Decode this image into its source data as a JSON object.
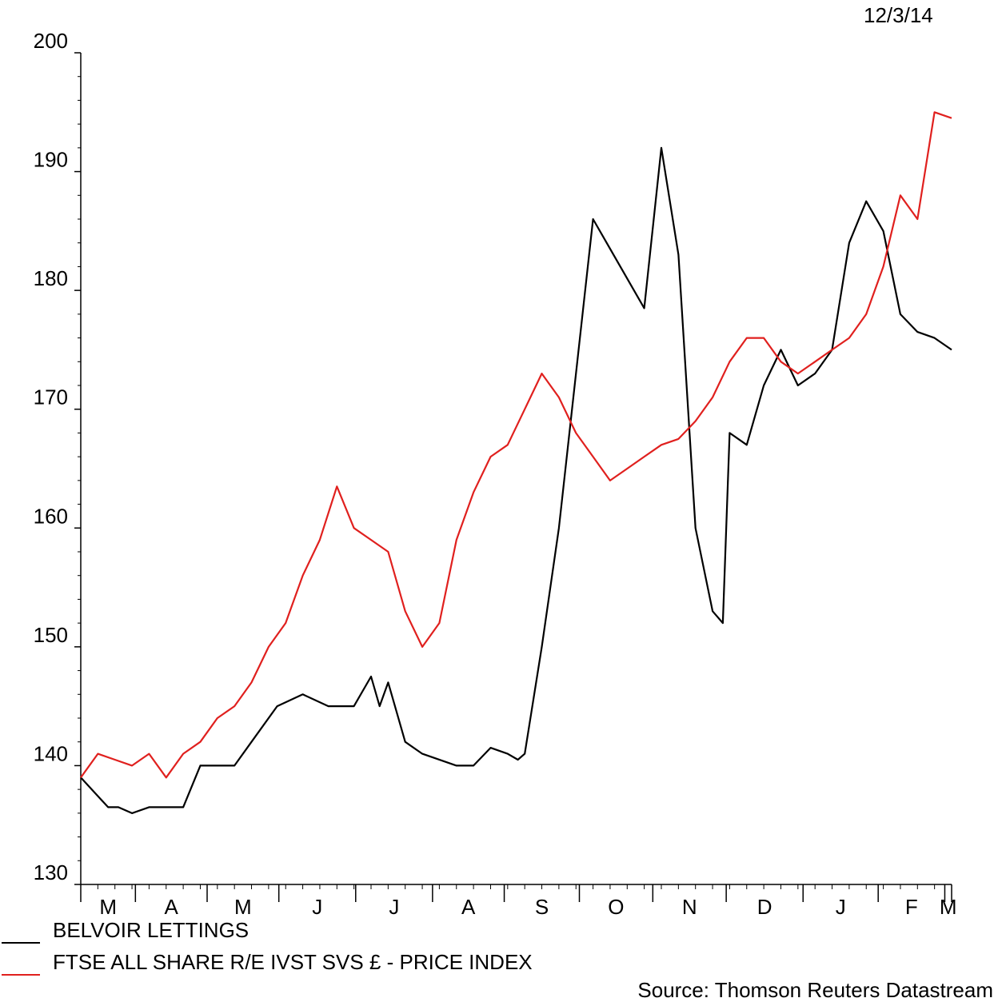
{
  "date_label": "12/3/14",
  "source_label": "Source: Thomson Reuters Datastream",
  "chart_data": {
    "type": "line",
    "title": "",
    "xlabel": "",
    "ylabel": "",
    "ylim": [
      130,
      200
    ],
    "yticks": [
      130,
      140,
      150,
      160,
      170,
      180,
      190,
      200
    ],
    "x_tick_labels": [
      "M",
      "A",
      "M",
      "J",
      "J",
      "A",
      "S",
      "O",
      "N",
      "D",
      "J",
      "F",
      "M"
    ],
    "x_unit": "weeks since start of period (approx. Mar 2013 to Mar 2014)",
    "grid": false,
    "legend_position": "bottom-left",
    "series": [
      {
        "name": "BELVOIR LETTINGS",
        "color": "#000000",
        "x": [
          0,
          1.6,
          2.2,
          3,
          4,
          6,
          7,
          9,
          10,
          11.5,
          13,
          14.5,
          16,
          17,
          17.5,
          18,
          19,
          20,
          22,
          23,
          24,
          25,
          25.6,
          26,
          27,
          28,
          30,
          33,
          34,
          35,
          36,
          37,
          37.6,
          38,
          39,
          40,
          41,
          42,
          43,
          44,
          45,
          46,
          47,
          48,
          49,
          50,
          51
        ],
        "values": [
          139,
          136.5,
          136.5,
          136,
          136.5,
          136.5,
          140,
          140,
          142,
          145,
          146,
          145,
          145,
          147.5,
          145,
          147,
          142,
          141,
          140,
          140,
          141.5,
          141,
          140.5,
          141,
          150,
          160,
          186,
          178.5,
          192,
          183,
          160,
          153,
          152,
          168,
          167,
          172,
          175,
          172,
          173,
          175,
          184,
          187.5,
          185,
          178,
          176.5,
          176,
          175
        ]
      },
      {
        "name": "FTSE ALL SHARE R/E IVST SVS £ - PRICE INDEX",
        "color": "#e0201e",
        "x": [
          0,
          1,
          2,
          3,
          4,
          5,
          6,
          7,
          8,
          9,
          10,
          11,
          12,
          13,
          14,
          15,
          16,
          17,
          18,
          19,
          20,
          21,
          22,
          23,
          24,
          25,
          26,
          27,
          28,
          29,
          30,
          31,
          32,
          33,
          34,
          35,
          36,
          37,
          38,
          39,
          40,
          41,
          42,
          43,
          44,
          45,
          46,
          47,
          48,
          49,
          50,
          51
        ],
        "values": [
          139,
          141,
          140.5,
          140,
          141,
          139,
          141,
          142,
          144,
          145,
          147,
          150,
          152,
          156,
          159,
          163.5,
          160,
          159,
          158,
          153,
          150,
          152,
          159,
          163,
          166,
          167,
          170,
          173,
          171,
          168,
          166,
          164,
          165,
          166,
          167,
          167.5,
          169,
          171,
          174,
          176,
          176,
          174,
          173,
          174,
          175,
          176,
          178,
          182,
          188,
          186,
          195,
          194.5
        ]
      }
    ]
  }
}
